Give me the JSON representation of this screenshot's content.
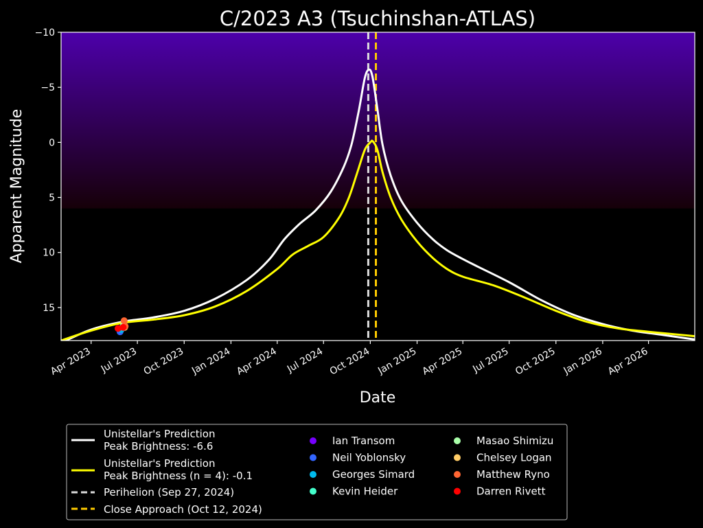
{
  "chart_data": {
    "type": "line",
    "title": "C/2023 A3 (Tsuchinshan-ATLAS)",
    "xlabel": "Date",
    "ylabel": "Apparent Magnitude",
    "x_range": [
      "2023-02-01",
      "2026-07-01"
    ],
    "ylim": [
      18,
      -10
    ],
    "y_inverted": true,
    "grid": false,
    "legend_position": "bottom",
    "background": "#000000",
    "sky_gradient": {
      "top_color": "#4d00aa",
      "bottom_color": "#160008",
      "from_magnitude": -10,
      "to_magnitude": 6
    },
    "y_ticks": [
      {
        "value": -10,
        "label": "−10"
      },
      {
        "value": -5,
        "label": "−5"
      },
      {
        "value": 0,
        "label": "0"
      },
      {
        "value": 5,
        "label": "5"
      },
      {
        "value": 10,
        "label": "10"
      },
      {
        "value": 15,
        "label": "15"
      }
    ],
    "x_ticks": [
      {
        "date": "2023-04-01",
        "label": "Apr 2023"
      },
      {
        "date": "2023-07-01",
        "label": "Jul 2023"
      },
      {
        "date": "2023-10-01",
        "label": "Oct 2023"
      },
      {
        "date": "2024-01-01",
        "label": "Jan 2024"
      },
      {
        "date": "2024-04-01",
        "label": "Apr 2024"
      },
      {
        "date": "2024-07-01",
        "label": "Jul 2024"
      },
      {
        "date": "2024-10-01",
        "label": "Oct 2024"
      },
      {
        "date": "2025-01-01",
        "label": "Jan 2025"
      },
      {
        "date": "2025-04-01",
        "label": "Apr 2025"
      },
      {
        "date": "2025-07-01",
        "label": "Jul 2025"
      },
      {
        "date": "2025-10-01",
        "label": "Oct 2025"
      },
      {
        "date": "2026-01-01",
        "label": "Jan 2026"
      },
      {
        "date": "2026-04-01",
        "label": "Apr 2026"
      }
    ],
    "series": [
      {
        "name": "Unistellar's Prediction",
        "detail": "Peak Brightness: -6.6",
        "color": "#ffffff",
        "points": [
          [
            "2023-02-01",
            18.2
          ],
          [
            "2023-04-01",
            17.0
          ],
          [
            "2023-06-01",
            16.3
          ],
          [
            "2023-08-01",
            15.9
          ],
          [
            "2023-10-01",
            15.3
          ],
          [
            "2023-12-01",
            14.2
          ],
          [
            "2024-02-01",
            12.5
          ],
          [
            "2024-03-15",
            10.7
          ],
          [
            "2024-04-15",
            8.8
          ],
          [
            "2024-05-15",
            7.4
          ],
          [
            "2024-06-15",
            6.2
          ],
          [
            "2024-07-15",
            4.5
          ],
          [
            "2024-08-10",
            2.2
          ],
          [
            "2024-08-25",
            0.2
          ],
          [
            "2024-09-08",
            -2.8
          ],
          [
            "2024-09-20",
            -5.8
          ],
          [
            "2024-09-28",
            -6.6
          ],
          [
            "2024-10-05",
            -6.0
          ],
          [
            "2024-10-15",
            -3.0
          ],
          [
            "2024-10-25",
            0.2
          ],
          [
            "2024-11-10",
            3.0
          ],
          [
            "2024-12-01",
            5.3
          ],
          [
            "2025-01-01",
            7.3
          ],
          [
            "2025-02-01",
            8.8
          ],
          [
            "2025-03-01",
            9.8
          ],
          [
            "2025-04-01",
            10.6
          ],
          [
            "2025-05-01",
            11.3
          ],
          [
            "2025-07-01",
            12.7
          ],
          [
            "2025-09-01",
            14.3
          ],
          [
            "2025-11-01",
            15.6
          ],
          [
            "2026-01-01",
            16.5
          ],
          [
            "2026-03-01",
            17.1
          ],
          [
            "2026-05-01",
            17.5
          ],
          [
            "2026-07-01",
            17.9
          ]
        ]
      },
      {
        "name": "Unistellar's Prediction",
        "detail": "Peak Brightness (n = 4): -0.1",
        "color": "#ffff00",
        "points": [
          [
            "2023-02-01",
            18.0
          ],
          [
            "2023-04-01",
            17.1
          ],
          [
            "2023-06-01",
            16.4
          ],
          [
            "2023-08-01",
            16.1
          ],
          [
            "2023-10-01",
            15.7
          ],
          [
            "2023-12-01",
            14.9
          ],
          [
            "2024-02-01",
            13.5
          ],
          [
            "2024-04-01",
            11.5
          ],
          [
            "2024-05-01",
            10.2
          ],
          [
            "2024-06-01",
            9.4
          ],
          [
            "2024-07-01",
            8.6
          ],
          [
            "2024-08-01",
            6.8
          ],
          [
            "2024-08-20",
            5.0
          ],
          [
            "2024-09-05",
            2.8
          ],
          [
            "2024-09-20",
            0.7
          ],
          [
            "2024-10-01",
            0.0
          ],
          [
            "2024-10-06",
            -0.1
          ],
          [
            "2024-10-15",
            0.7
          ],
          [
            "2024-10-25",
            2.7
          ],
          [
            "2024-11-10",
            5.0
          ],
          [
            "2024-12-01",
            7.0
          ],
          [
            "2025-01-01",
            9.0
          ],
          [
            "2025-02-01",
            10.5
          ],
          [
            "2025-03-01",
            11.5
          ],
          [
            "2025-04-01",
            12.2
          ],
          [
            "2025-06-01",
            13.0
          ],
          [
            "2025-08-01",
            14.1
          ],
          [
            "2025-10-01",
            15.3
          ],
          [
            "2025-12-01",
            16.3
          ],
          [
            "2026-02-01",
            16.9
          ],
          [
            "2026-04-01",
            17.2
          ],
          [
            "2026-07-01",
            17.6
          ]
        ]
      }
    ],
    "vertical_lines": [
      {
        "label": "Perihelion (Sep 27, 2024)",
        "date": "2024-09-27",
        "color": "#dddddd"
      },
      {
        "label": "Close Approach (Oct 12, 2024)",
        "date": "2024-10-12",
        "color": "#ffcc00"
      }
    ],
    "observers": [
      {
        "name": "Ian Transom",
        "color": "#7700ff",
        "points": [
          [
            "2023-05-25",
            16.9
          ]
        ]
      },
      {
        "name": "Neil Yoblonsky",
        "color": "#3366ff",
        "points": [
          [
            "2023-05-28",
            17.2
          ],
          [
            "2023-06-01",
            16.9
          ]
        ]
      },
      {
        "name": "Georges Simard",
        "color": "#00bbee",
        "points": [
          [
            "2023-05-30",
            17.0
          ]
        ]
      },
      {
        "name": "Kevin Heider",
        "color": "#44ffcc",
        "points": [
          [
            "2023-06-02",
            16.8
          ]
        ]
      },
      {
        "name": "Masao Shimizu",
        "color": "#aaffaa",
        "points": [
          [
            "2023-06-04",
            16.6
          ]
        ]
      },
      {
        "name": "Chelsey Logan",
        "color": "#ffcc66",
        "points": [
          [
            "2023-06-06",
            16.8
          ]
        ]
      },
      {
        "name": "Matthew Ryno",
        "color": "#ff6633",
        "points": [
          [
            "2023-06-05",
            16.2
          ],
          [
            "2023-06-07",
            16.7
          ]
        ]
      },
      {
        "name": "Darren Rivett",
        "color": "#ff0000",
        "points": [
          [
            "2023-05-24",
            16.9
          ],
          [
            "2023-06-03",
            16.8
          ]
        ]
      }
    ]
  }
}
